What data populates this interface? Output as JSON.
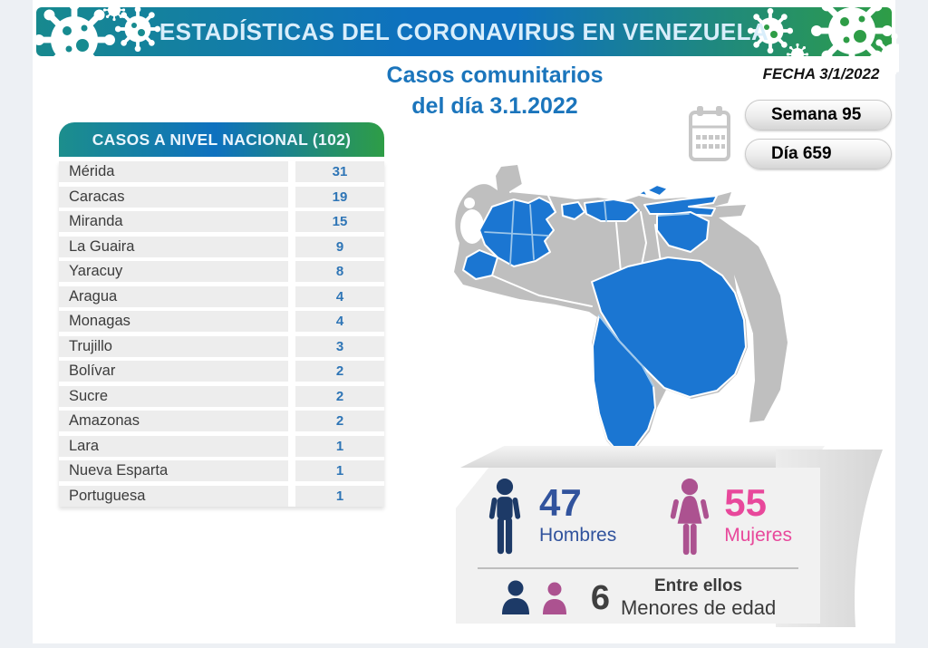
{
  "header": {
    "title": "ESTADÍSTICAS DEL CORONAVIRUS EN VENEZUELA"
  },
  "subtitle": {
    "line1": "Casos comunitarios",
    "line2": "del día 3.1.2022"
  },
  "date_label": "FECHA 3/1/2022",
  "badges": {
    "week": "Semana 95",
    "day": "Día 659"
  },
  "cases_table": {
    "title": "CASOS A NIVEL NACIONAL  (102)",
    "rows": [
      {
        "state": "Mérida",
        "cases": "31"
      },
      {
        "state": "Caracas",
        "cases": "19"
      },
      {
        "state": "Miranda",
        "cases": "15"
      },
      {
        "state": "La Guaira",
        "cases": "9"
      },
      {
        "state": "Yaracuy",
        "cases": "8"
      },
      {
        "state": "Aragua",
        "cases": "4"
      },
      {
        "state": "Monagas",
        "cases": "4"
      },
      {
        "state": "Trujillo",
        "cases": "3"
      },
      {
        "state": "Bolívar",
        "cases": "2"
      },
      {
        "state": "Sucre",
        "cases": "2"
      },
      {
        "state": "Amazonas",
        "cases": "2"
      },
      {
        "state": "Lara",
        "cases": "1"
      },
      {
        "state": "Nueva Esparta",
        "cases": "1"
      },
      {
        "state": "Portuguesa",
        "cases": "1"
      }
    ]
  },
  "demographics": {
    "men": {
      "value": "47",
      "label": "Hombres"
    },
    "women": {
      "value": "55",
      "label": "Mujeres"
    },
    "minors": {
      "value": "6",
      "line1": "Entre ellos",
      "line2": "Menores de edad"
    }
  },
  "colors": {
    "banner_teal": "#17898E",
    "banner_blue": "#0E71BF",
    "banner_green": "#2E9D46",
    "subtitle_blue": "#1B75BC",
    "case_number_blue": "#2E75B6",
    "map_highlight": "#1B76D2",
    "map_base": "#BFBFBF",
    "men_icon": "#1D3A67",
    "men_text": "#31539D",
    "women_icon": "#AC5290",
    "women_text": "#E8489B"
  },
  "chart_data": {
    "type": "table",
    "title": "CASOS A NIVEL NACIONAL (102)",
    "date": "3/1/2022",
    "week": 95,
    "day": 659,
    "total_cases": 102,
    "categories": [
      "Mérida",
      "Caracas",
      "Miranda",
      "La Guaira",
      "Yaracuy",
      "Aragua",
      "Monagas",
      "Trujillo",
      "Bolívar",
      "Sucre",
      "Amazonas",
      "Lara",
      "Nueva Esparta",
      "Portuguesa"
    ],
    "values": [
      31,
      19,
      15,
      9,
      8,
      4,
      4,
      3,
      2,
      2,
      2,
      1,
      1,
      1
    ],
    "gender": {
      "hombres": 47,
      "mujeres": 55
    },
    "menores_de_edad": 6,
    "map_note": "choropleth of Venezuela; states with reported cases shown in blue"
  }
}
